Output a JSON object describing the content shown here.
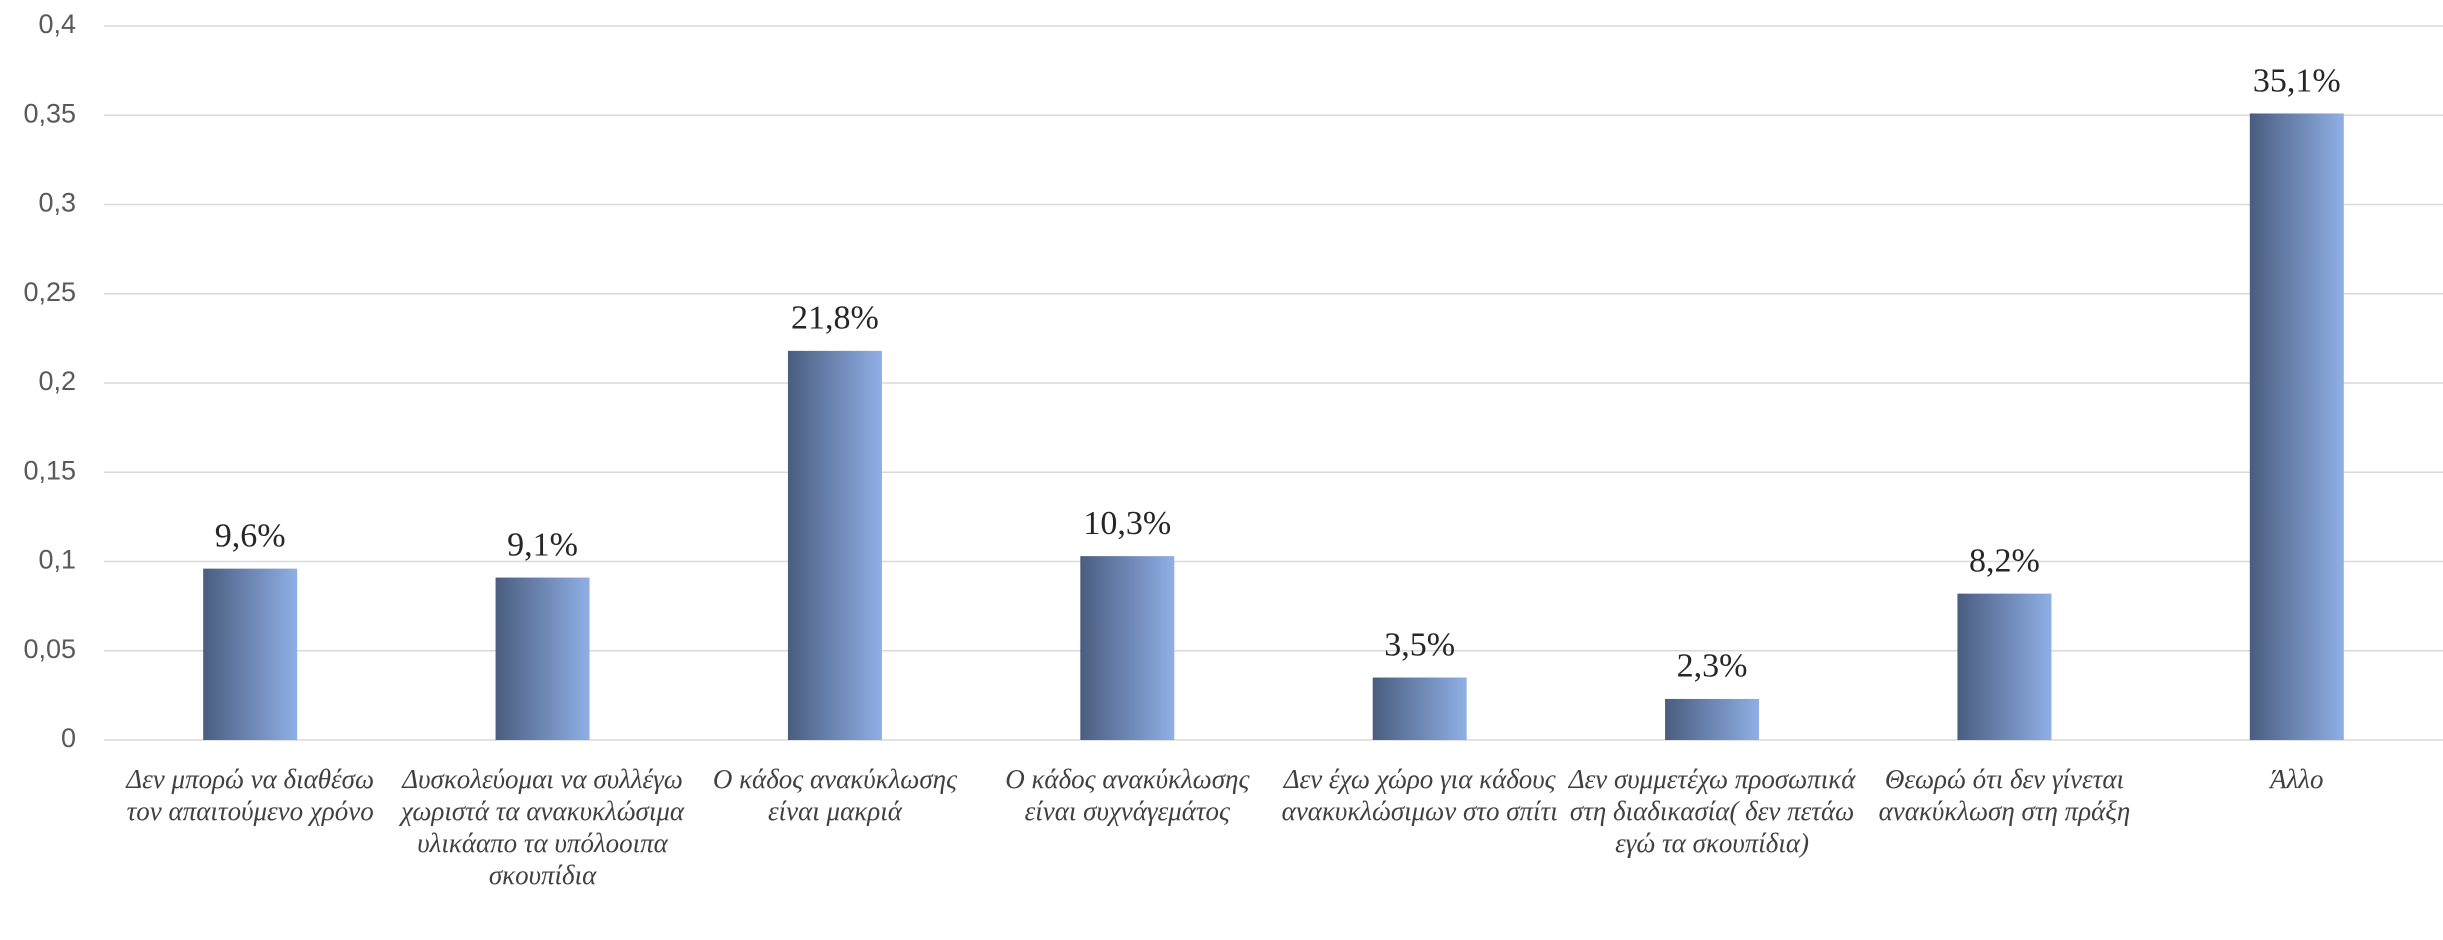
{
  "chart_data": {
    "type": "bar",
    "categories": [
      "Δεν μπορώ να διαθέσω τον απαιτούμενο χρόνο",
      "Δυσκολεύομαι να συλλέγω χωριστά τα ανακυκλώσιμα υλικάαπο τα υπόλοοιπα σκουπίδια",
      "Ο κάδος ανακύκλωσης είναι μακριά",
      "Ο κάδος ανακύκλωσης είναι συχνάγεμάτος",
      "Δεν έχω χώρο για κάδους ανακυκλώσιμων στο σπίτι",
      "Δεν συμμετέχω προσωπικά στη διαδικασία( δεν πετάω εγώ τα σκουπίδια)",
      "Θεωρώ ότι δεν γίνεται ανακύκλωση στη πράξη",
      "Άλλο"
    ],
    "values": [
      0.096,
      0.091,
      0.218,
      0.103,
      0.035,
      0.023,
      0.082,
      0.351
    ],
    "value_labels": [
      "9,6%",
      "9,1%",
      "21,8%",
      "10,3%",
      "3,5%",
      "2,3%",
      "8,2%",
      "35,1%"
    ],
    "colors": [
      "#4a5d80",
      "#8fafe5"
    ],
    "ylim": [
      0,
      0.4
    ],
    "yticks": [
      0,
      {
        "value": 0.05,
        "label": "0,05"
      },
      {
        "value": 0.1,
        "label": "0,1"
      },
      {
        "value": 0.15,
        "label": "0,15"
      },
      {
        "value": 0.2,
        "label": "0,2"
      },
      {
        "value": 0.25,
        "label": "0,25"
      },
      {
        "value": 0.3,
        "label": "0,3"
      },
      {
        "value": 0.35,
        "label": "0,35"
      },
      {
        "value": 0.4,
        "label": "0,4"
      }
    ],
    "grid": true
  }
}
